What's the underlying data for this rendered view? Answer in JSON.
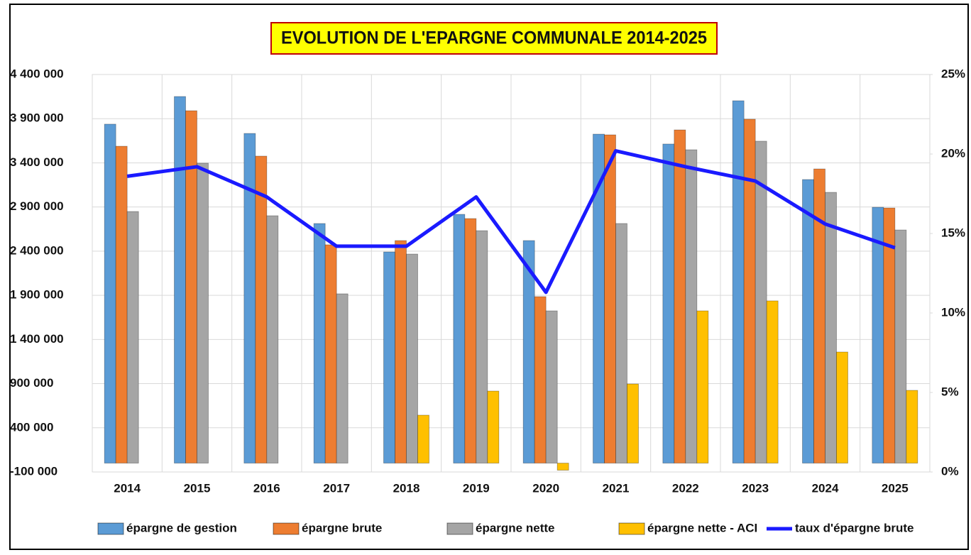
{
  "chart_data": {
    "type": "bar",
    "title": "EVOLUTION DE L'EPARGNE COMMUNALE 2014-2025",
    "categories": [
      "2014",
      "2015",
      "2016",
      "2017",
      "2018",
      "2019",
      "2020",
      "2021",
      "2022",
      "2023",
      "2024",
      "2025"
    ],
    "series": [
      {
        "name": "épargne de gestion",
        "type": "bar",
        "color": "#5b9bd5",
        "values": [
          3838000,
          4151000,
          3733000,
          2713000,
          2391000,
          2817000,
          2520000,
          3725000,
          3613000,
          4103000,
          3211000,
          2897000
        ]
      },
      {
        "name": "épargne brute",
        "type": "bar",
        "color": "#ed7d31",
        "values": [
          3588000,
          3990000,
          3476000,
          2472000,
          2520000,
          2769000,
          1885000,
          3717000,
          3773000,
          3894000,
          3331000,
          2889000
        ]
      },
      {
        "name": "épargne nette",
        "type": "bar",
        "color": "#a5a5a5",
        "values": [
          2849000,
          3396000,
          2801000,
          1917000,
          2367000,
          2632000,
          1724000,
          2713000,
          3548000,
          3645000,
          3066000,
          2640000
        ]
      },
      {
        "name": "épargne nette - ACI",
        "type": "bar",
        "color": "#ffc000",
        "values": [
          0,
          0,
          0,
          0,
          543000,
          816000,
          -80000,
          896000,
          1724000,
          1837000,
          1258000,
          824000
        ]
      },
      {
        "name": "taux d'épargne brute",
        "type": "line",
        "axis": "y2",
        "color": "#1a1aff",
        "values": [
          18.6,
          19.2,
          17.3,
          14.2,
          14.2,
          17.3,
          11.3,
          20.2,
          19.2,
          18.3,
          15.6,
          14.1
        ]
      }
    ],
    "ylim": [
      -100000,
      4400000
    ],
    "yticks": [
      {
        "value": -100000,
        "label": "-100 000"
      },
      {
        "value": 400000,
        "label": "400 000"
      },
      {
        "value": 900000,
        "label": "900 000"
      },
      {
        "value": 1400000,
        "label": "1 400 000"
      },
      {
        "value": 1900000,
        "label": "1 900 000"
      },
      {
        "value": 2400000,
        "label": "2 400 000"
      },
      {
        "value": 2900000,
        "label": "2 900 000"
      },
      {
        "value": 3400000,
        "label": "3 400 000"
      },
      {
        "value": 3900000,
        "label": "3 900 000"
      },
      {
        "value": 4400000,
        "label": "4 400 000"
      }
    ],
    "y2lim": [
      0,
      25
    ],
    "y2ticks": [
      {
        "value": 0,
        "label": "0%"
      },
      {
        "value": 5,
        "label": "5%"
      },
      {
        "value": 10,
        "label": "10%"
      },
      {
        "value": 15,
        "label": "15%"
      },
      {
        "value": 20,
        "label": "20%"
      },
      {
        "value": 25,
        "label": "25%"
      }
    ],
    "grid": true,
    "legend": "bottom"
  }
}
